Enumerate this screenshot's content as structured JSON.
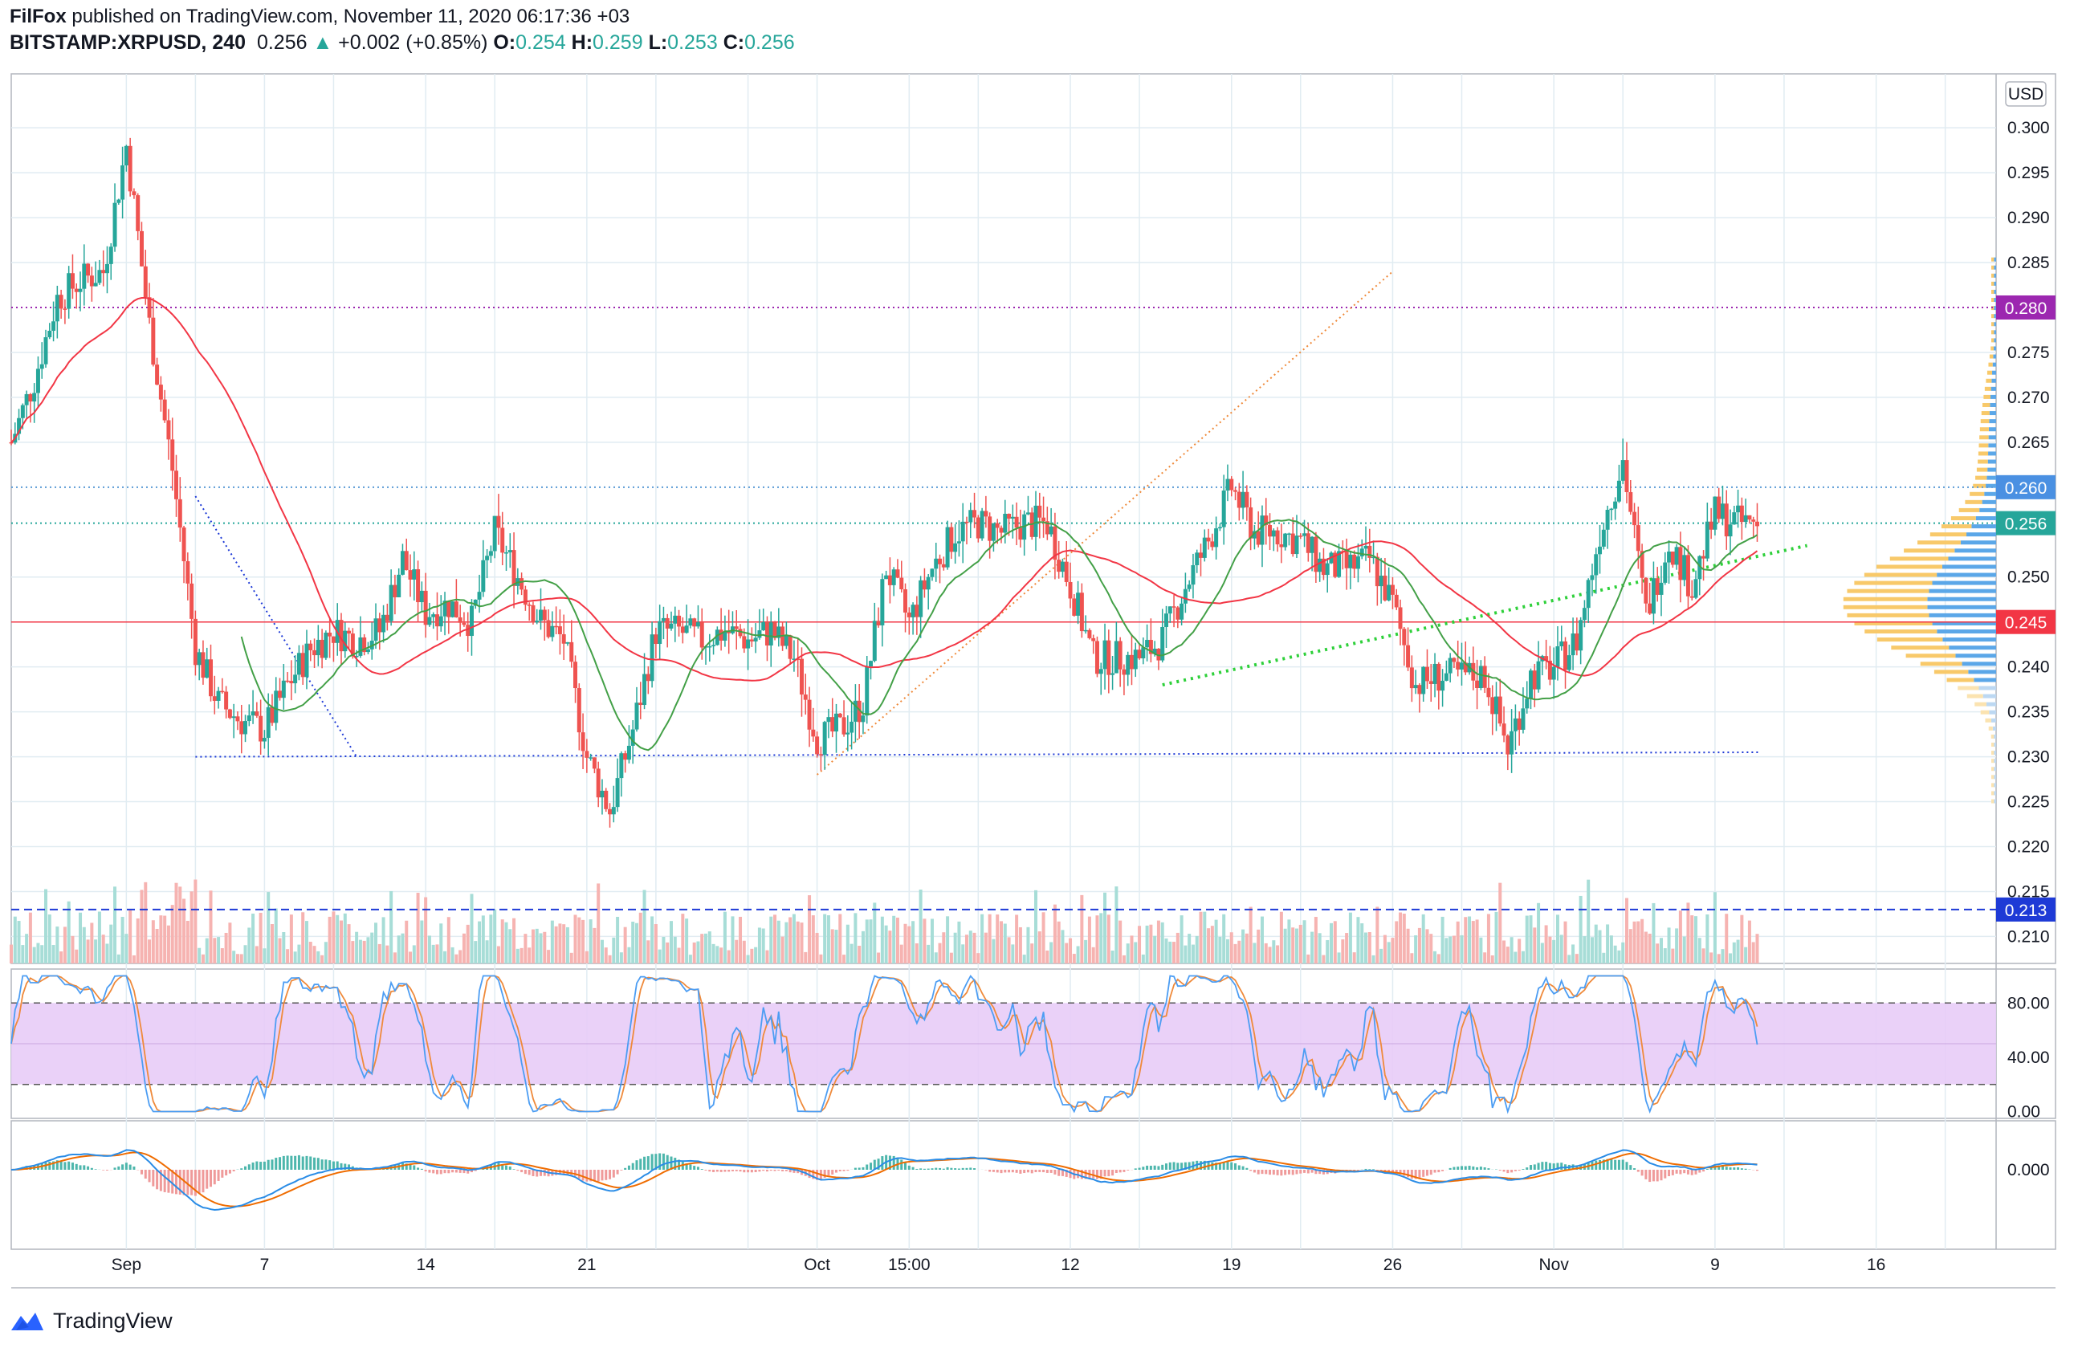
{
  "header": {
    "author": "FilFox",
    "published_text": "published on TradingView.com, November 11, 2020 06:17:36 +03",
    "symbol": "BITSTAMP:XRPUSD, 240",
    "price": "0.256",
    "change": "+0.002 (+0.85%)",
    "open_label": "O:",
    "open": "0.254",
    "high_label": "H:",
    "high": "0.259",
    "low_label": "L:",
    "low": "0.253",
    "close_label": "C:",
    "close": "0.256"
  },
  "footer": {
    "brand": "TradingView"
  },
  "colors": {
    "up": "#26a69a",
    "down": "#ef5350",
    "grid": "#e1ecf2",
    "ma_red": "#f23645",
    "ma_green": "#43a047",
    "purple": "#9c27b0",
    "blue_line": "#1e3ad6",
    "stoch_bg": "#e8ccf7",
    "stoch_k": "#4c9df3",
    "stoch_d": "#ef8a3b",
    "macd_line": "#2a8ce6",
    "signal_line": "#ef6c00"
  },
  "chart_data": [
    {
      "type": "candlestick",
      "name": "price",
      "currency": "USD",
      "ylim": [
        0.207,
        0.306
      ],
      "y_ticks": [
        "0.300",
        "0.295",
        "0.290",
        "0.285",
        "0.275",
        "0.270",
        "0.265",
        "0.250",
        "0.240",
        "0.235",
        "0.230",
        "0.225",
        "0.220",
        "0.215",
        "0.210"
      ],
      "x_tick_labels": [
        "Sep",
        "7",
        "14",
        "21",
        "Oct",
        "15:00",
        "12",
        "19",
        "26",
        "Nov",
        "9",
        "16"
      ],
      "x_tick_dates": [
        "2020-09-01",
        "2020-09-07",
        "2020-09-14",
        "2020-09-21",
        "2020-10-01",
        "2020-10-05",
        "2020-10-12",
        "2020-10-19",
        "2020-10-26",
        "2020-11-02",
        "2020-11-09",
        "2020-11-16"
      ],
      "price_path_dates": [
        "2020-08-27",
        "2020-08-28",
        "2020-08-29",
        "2020-08-30",
        "2020-08-31",
        "2020-09-01",
        "2020-09-02",
        "2020-09-03",
        "2020-09-04",
        "2020-09-05",
        "2020-09-06",
        "2020-09-07",
        "2020-09-08",
        "2020-09-09",
        "2020-09-10",
        "2020-09-11",
        "2020-09-12",
        "2020-09-13",
        "2020-09-14",
        "2020-09-15",
        "2020-09-16",
        "2020-09-17",
        "2020-09-18",
        "2020-09-19",
        "2020-09-20",
        "2020-09-21",
        "2020-09-22",
        "2020-09-23",
        "2020-09-24",
        "2020-09-25",
        "2020-09-26",
        "2020-09-27",
        "2020-09-28",
        "2020-09-29",
        "2020-09-30",
        "2020-10-01",
        "2020-10-02",
        "2020-10-03",
        "2020-10-04",
        "2020-10-05",
        "2020-10-06",
        "2020-10-07",
        "2020-10-08",
        "2020-10-09",
        "2020-10-10",
        "2020-10-11",
        "2020-10-12",
        "2020-10-13",
        "2020-10-14",
        "2020-10-15",
        "2020-10-16",
        "2020-10-17",
        "2020-10-18",
        "2020-10-19",
        "2020-10-20",
        "2020-10-21",
        "2020-10-22",
        "2020-10-23",
        "2020-10-24",
        "2020-10-25",
        "2020-10-26",
        "2020-10-27",
        "2020-10-28",
        "2020-10-29",
        "2020-10-30",
        "2020-10-31",
        "2020-11-01",
        "2020-11-02",
        "2020-11-03",
        "2020-11-04",
        "2020-11-05",
        "2020-11-06",
        "2020-11-07",
        "2020-11-08",
        "2020-11-09",
        "2020-11-10"
      ],
      "price_path": [
        0.265,
        0.272,
        0.281,
        0.283,
        0.284,
        0.298,
        0.278,
        0.262,
        0.242,
        0.236,
        0.234,
        0.233,
        0.238,
        0.242,
        0.244,
        0.243,
        0.244,
        0.252,
        0.246,
        0.247,
        0.245,
        0.255,
        0.25,
        0.245,
        0.243,
        0.23,
        0.224,
        0.233,
        0.244,
        0.244,
        0.243,
        0.244,
        0.243,
        0.244,
        0.241,
        0.232,
        0.233,
        0.236,
        0.251,
        0.245,
        0.251,
        0.255,
        0.256,
        0.255,
        0.256,
        0.256,
        0.249,
        0.241,
        0.241,
        0.241,
        0.243,
        0.249,
        0.254,
        0.26,
        0.255,
        0.255,
        0.254,
        0.251,
        0.251,
        0.252,
        0.247,
        0.238,
        0.239,
        0.239,
        0.239,
        0.231,
        0.239,
        0.24,
        0.243,
        0.255,
        0.263,
        0.246,
        0.254,
        0.249,
        0.257,
        0.256
      ],
      "horizontal_levels": [
        {
          "value": "0.280",
          "style": "dotted",
          "color": "#9c27b0"
        },
        {
          "value": "0.260",
          "style": "dotted",
          "color": "#5b9bd5"
        },
        {
          "value": "0.256",
          "style": "dotted",
          "color": "#26a69a"
        },
        {
          "value": "0.245",
          "style": "solid",
          "color": "#f23645"
        },
        {
          "value": "0.213",
          "style": "dashed",
          "color": "#1e3ad6"
        }
      ],
      "price_tags": [
        {
          "value": "0.280",
          "bg": "#9c27b0"
        },
        {
          "value": "0.260",
          "bg": "#4a90e2"
        },
        {
          "value": "0.256",
          "bg": "#26a69a"
        },
        {
          "value": "0.245",
          "bg": "#f23645"
        },
        {
          "value": "0.213",
          "bg": "#1e3ad6"
        }
      ]
    },
    {
      "type": "line",
      "name": "stochastic",
      "ylim": [
        -5,
        105
      ],
      "y_ticks": [
        "80.00",
        "40.00",
        "0.00"
      ],
      "bands": [
        20,
        80
      ]
    },
    {
      "type": "line",
      "name": "macd",
      "y_ticks": [
        "0.000"
      ]
    }
  ]
}
